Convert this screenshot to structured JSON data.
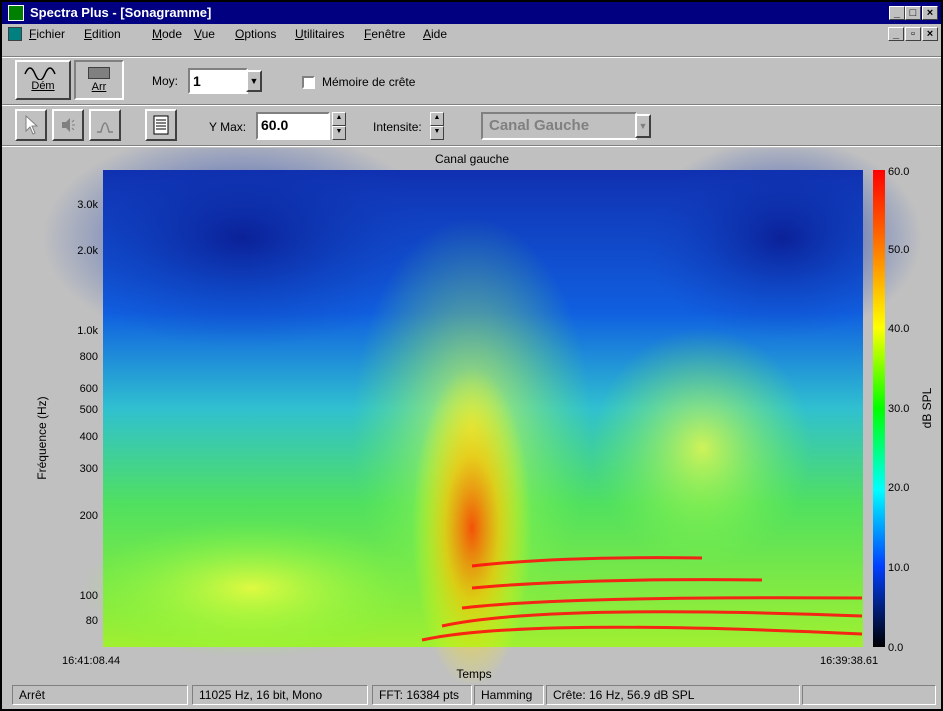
{
  "window": {
    "title": "Spectra Plus - [Sonagramme]"
  },
  "menu": [
    "Fichier",
    "Edition",
    "Mode",
    "Vue",
    "Options",
    "Utilitaires",
    "Fenêtre",
    "Aide"
  ],
  "toolbar1": {
    "start_label": "Dém",
    "stop_label": "Arr",
    "avg_label": "Moy:",
    "avg_value": "1",
    "peak_memory_label": "Mémoire de crête"
  },
  "toolbar2": {
    "ymax_label": "Y Max:",
    "ymax_value": "60.0",
    "intensity_label": "Intensite:",
    "channel_value": "Canal Gauche"
  },
  "plot": {
    "title": "Canal gauche",
    "ylabel": "Fréquence (Hz)",
    "xlabel": "Temps",
    "x_start": "16:41:08.44",
    "x_end": "16:39:38.61",
    "y_ticks": [
      "3.0k",
      "2.0k",
      "1.0k",
      "800",
      "600",
      "500",
      "400",
      "300",
      "200",
      "100",
      "80"
    ],
    "colorbar_label": "dB SPL",
    "colorbar_ticks": [
      "60.0",
      "50.0",
      "40.0",
      "30.0",
      "20.0",
      "10.0",
      "0.0"
    ]
  },
  "status": [
    "Arrêt",
    "11025 Hz, 16 bit, Mono",
    "FFT: 16384 pts",
    "Hamming",
    "Crête: 16 Hz, 56.9 dB SPL"
  ]
}
